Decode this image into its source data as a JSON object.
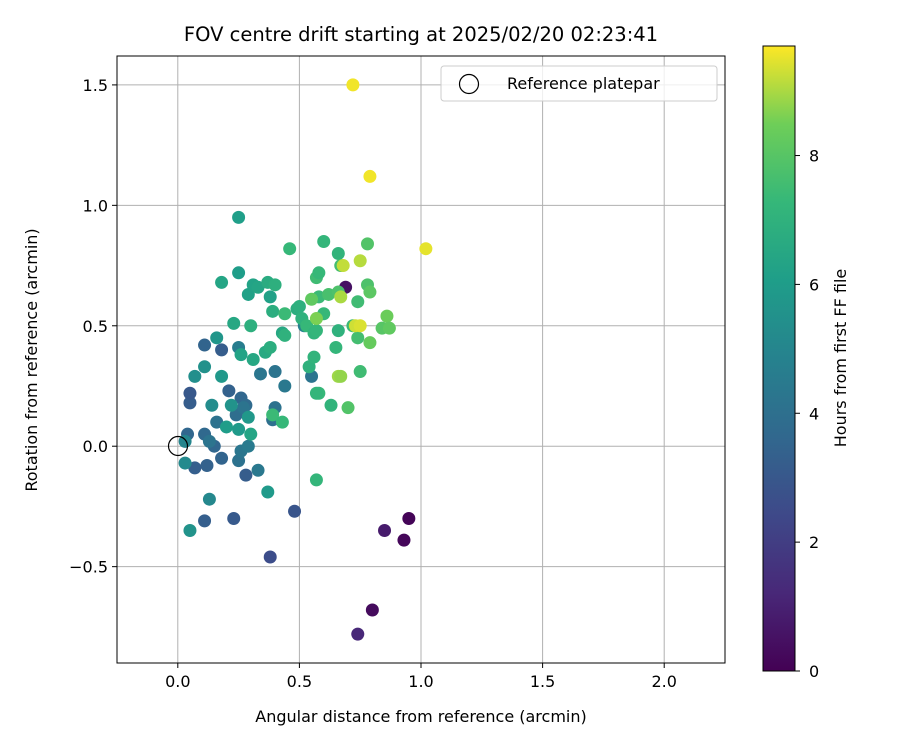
{
  "chart_data": {
    "type": "scatter",
    "title": "FOV centre drift starting at 2025/02/20 02:23:41",
    "xlabel": "Angular distance from reference (arcmin)",
    "ylabel": "Rotation from reference (arcmin)",
    "xlim": [
      -0.25,
      2.25
    ],
    "ylim": [
      -0.9,
      1.62
    ],
    "xticks": [
      0.0,
      0.5,
      1.0,
      1.5,
      2.0
    ],
    "xtick_labels": [
      "0.0",
      "0.5",
      "1.0",
      "1.5",
      "2.0"
    ],
    "yticks": [
      -0.5,
      0.0,
      0.5,
      1.0,
      1.5
    ],
    "ytick_labels": [
      "−0.5",
      "0.0",
      "0.5",
      "1.0",
      "1.5"
    ],
    "grid": true,
    "legend": {
      "placement": "top-right",
      "entries": [
        "Reference platepar"
      ]
    },
    "reference_point": {
      "x": 0.0,
      "y": 0.0,
      "label": "Reference platepar"
    },
    "colormap": "viridis",
    "colorbar": {
      "label": "Hours from first FF file",
      "range": [
        0,
        9.7
      ],
      "ticks": [
        0,
        2,
        4,
        6,
        8
      ],
      "tick_labels": [
        "0",
        "2",
        "4",
        "6",
        "8"
      ]
    },
    "points": [
      {
        "x": 0.95,
        "y": -0.3,
        "h": 0.1
      },
      {
        "x": 0.93,
        "y": -0.39,
        "h": 0.2
      },
      {
        "x": 0.8,
        "y": -0.68,
        "h": 0.3
      },
      {
        "x": 0.85,
        "y": -0.35,
        "h": 0.8
      },
      {
        "x": 0.74,
        "y": -0.78,
        "h": 1.2
      },
      {
        "x": 0.69,
        "y": 0.66,
        "h": 0.5
      },
      {
        "x": 0.38,
        "y": -0.46,
        "h": 2.6
      },
      {
        "x": 0.48,
        "y": -0.27,
        "h": 2.9
      },
      {
        "x": 0.23,
        "y": -0.3,
        "h": 3.1
      },
      {
        "x": 0.11,
        "y": -0.31,
        "h": 3.3
      },
      {
        "x": 0.28,
        "y": -0.12,
        "h": 3.2
      },
      {
        "x": 0.12,
        "y": -0.08,
        "h": 3.4
      },
      {
        "x": 0.07,
        "y": -0.09,
        "h": 3.3
      },
      {
        "x": 0.18,
        "y": -0.05,
        "h": 3.5
      },
      {
        "x": 0.15,
        "y": 0.0,
        "h": 3.6
      },
      {
        "x": 0.11,
        "y": 0.05,
        "h": 3.7
      },
      {
        "x": 0.04,
        "y": 0.05,
        "h": 3.6
      },
      {
        "x": 0.05,
        "y": 0.18,
        "h": 3.2
      },
      {
        "x": 0.05,
        "y": 0.22,
        "h": 3.0
      },
      {
        "x": 0.18,
        "y": 0.4,
        "h": 3.2
      },
      {
        "x": 0.11,
        "y": 0.42,
        "h": 3.5
      },
      {
        "x": 0.21,
        "y": 0.23,
        "h": 3.4
      },
      {
        "x": 0.26,
        "y": 0.2,
        "h": 3.6
      },
      {
        "x": 0.28,
        "y": 0.17,
        "h": 3.8
      },
      {
        "x": 0.24,
        "y": 0.13,
        "h": 3.9
      },
      {
        "x": 0.16,
        "y": 0.1,
        "h": 4.1
      },
      {
        "x": 0.13,
        "y": 0.02,
        "h": 4.2
      },
      {
        "x": 0.25,
        "y": -0.06,
        "h": 4.1
      },
      {
        "x": 0.26,
        "y": -0.02,
        "h": 4.3
      },
      {
        "x": 0.29,
        "y": 0.0,
        "h": 4.5
      },
      {
        "x": 0.33,
        "y": -0.1,
        "h": 4.4
      },
      {
        "x": 0.27,
        "y": 0.16,
        "h": 4.2
      },
      {
        "x": 0.34,
        "y": 0.3,
        "h": 4.3
      },
      {
        "x": 0.4,
        "y": 0.31,
        "h": 4.2
      },
      {
        "x": 0.4,
        "y": 0.16,
        "h": 4.1
      },
      {
        "x": 0.39,
        "y": 0.11,
        "h": 4.0
      },
      {
        "x": 0.25,
        "y": 0.41,
        "h": 4.6
      },
      {
        "x": 0.44,
        "y": 0.25,
        "h": 4.4
      },
      {
        "x": 0.55,
        "y": 0.29,
        "h": 4.2
      },
      {
        "x": 0.52,
        "y": 0.5,
        "h": 4.8
      },
      {
        "x": 0.03,
        "y": 0.02,
        "h": 5.0
      },
      {
        "x": 0.03,
        "y": -0.07,
        "h": 5.2
      },
      {
        "x": 0.05,
        "y": -0.35,
        "h": 5.6
      },
      {
        "x": 0.13,
        "y": -0.22,
        "h": 5.1
      },
      {
        "x": 0.14,
        "y": 0.17,
        "h": 5.3
      },
      {
        "x": 0.11,
        "y": 0.33,
        "h": 5.5
      },
      {
        "x": 0.07,
        "y": 0.29,
        "h": 5.4
      },
      {
        "x": 0.16,
        "y": 0.45,
        "h": 5.7
      },
      {
        "x": 0.18,
        "y": 0.29,
        "h": 5.8
      },
      {
        "x": 0.22,
        "y": 0.17,
        "h": 5.6
      },
      {
        "x": 0.2,
        "y": 0.08,
        "h": 6.0
      },
      {
        "x": 0.25,
        "y": 0.07,
        "h": 5.9
      },
      {
        "x": 0.29,
        "y": 0.12,
        "h": 5.8
      },
      {
        "x": 0.37,
        "y": -0.19,
        "h": 5.9
      },
      {
        "x": 0.3,
        "y": 0.05,
        "h": 6.4
      },
      {
        "x": 0.26,
        "y": 0.38,
        "h": 6.3
      },
      {
        "x": 0.31,
        "y": 0.36,
        "h": 6.5
      },
      {
        "x": 0.36,
        "y": 0.39,
        "h": 6.6
      },
      {
        "x": 0.38,
        "y": 0.41,
        "h": 6.8
      },
      {
        "x": 0.23,
        "y": 0.51,
        "h": 6.5
      },
      {
        "x": 0.29,
        "y": 0.63,
        "h": 6.2
      },
      {
        "x": 0.25,
        "y": 0.72,
        "h": 6.0
      },
      {
        "x": 0.25,
        "y": 0.95,
        "h": 6.1
      },
      {
        "x": 0.18,
        "y": 0.68,
        "h": 6.4
      },
      {
        "x": 0.31,
        "y": 0.67,
        "h": 6.3
      },
      {
        "x": 0.33,
        "y": 0.66,
        "h": 6.4
      },
      {
        "x": 0.38,
        "y": 0.62,
        "h": 6.2
      },
      {
        "x": 0.37,
        "y": 0.68,
        "h": 6.7
      },
      {
        "x": 0.4,
        "y": 0.67,
        "h": 6.9
      },
      {
        "x": 0.39,
        "y": 0.56,
        "h": 6.8
      },
      {
        "x": 0.3,
        "y": 0.5,
        "h": 6.9
      },
      {
        "x": 0.43,
        "y": 0.47,
        "h": 6.5
      },
      {
        "x": 0.44,
        "y": 0.46,
        "h": 7.0
      },
      {
        "x": 0.49,
        "y": 0.57,
        "h": 6.8
      },
      {
        "x": 0.5,
        "y": 0.58,
        "h": 6.9
      },
      {
        "x": 0.51,
        "y": 0.53,
        "h": 7.0
      },
      {
        "x": 0.46,
        "y": 0.82,
        "h": 7.3
      },
      {
        "x": 0.44,
        "y": 0.55,
        "h": 7.4
      },
      {
        "x": 0.53,
        "y": 0.5,
        "h": 7.3
      },
      {
        "x": 0.56,
        "y": 0.47,
        "h": 7.1
      },
      {
        "x": 0.57,
        "y": 0.48,
        "h": 7.2
      },
      {
        "x": 0.54,
        "y": 0.33,
        "h": 7.0
      },
      {
        "x": 0.56,
        "y": 0.37,
        "h": 7.1
      },
      {
        "x": 0.58,
        "y": 0.22,
        "h": 7.3
      },
      {
        "x": 0.57,
        "y": 0.22,
        "h": 7.2
      },
      {
        "x": 0.57,
        "y": -0.14,
        "h": 7.2
      },
      {
        "x": 0.39,
        "y": 0.13,
        "h": 7.4
      },
      {
        "x": 0.43,
        "y": 0.1,
        "h": 7.3
      },
      {
        "x": 0.63,
        "y": 0.17,
        "h": 7.1
      },
      {
        "x": 0.66,
        "y": 0.48,
        "h": 7.0
      },
      {
        "x": 0.65,
        "y": 0.41,
        "h": 7.2
      },
      {
        "x": 0.6,
        "y": 0.55,
        "h": 7.3
      },
      {
        "x": 0.58,
        "y": 0.62,
        "h": 7.4
      },
      {
        "x": 0.57,
        "y": 0.7,
        "h": 7.5
      },
      {
        "x": 0.58,
        "y": 0.72,
        "h": 7.3
      },
      {
        "x": 0.6,
        "y": 0.85,
        "h": 7.2
      },
      {
        "x": 0.66,
        "y": 0.8,
        "h": 7.1
      },
      {
        "x": 0.67,
        "y": 0.75,
        "h": 7.6
      },
      {
        "x": 0.62,
        "y": 0.63,
        "h": 7.7
      },
      {
        "x": 0.66,
        "y": 0.64,
        "h": 7.8
      },
      {
        "x": 0.7,
        "y": 0.16,
        "h": 7.9
      },
      {
        "x": 0.72,
        "y": 0.5,
        "h": 7.4
      },
      {
        "x": 0.74,
        "y": 0.6,
        "h": 7.5
      },
      {
        "x": 0.74,
        "y": 0.45,
        "h": 7.6
      },
      {
        "x": 0.75,
        "y": 0.31,
        "h": 7.5
      },
      {
        "x": 0.78,
        "y": 0.67,
        "h": 7.8
      },
      {
        "x": 0.78,
        "y": 0.84,
        "h": 7.9
      },
      {
        "x": 0.79,
        "y": 0.64,
        "h": 8.1
      },
      {
        "x": 0.79,
        "y": 0.43,
        "h": 8.3
      },
      {
        "x": 0.84,
        "y": 0.49,
        "h": 8.0
      },
      {
        "x": 0.86,
        "y": 0.54,
        "h": 8.4
      },
      {
        "x": 0.87,
        "y": 0.49,
        "h": 8.2
      },
      {
        "x": 0.57,
        "y": 0.53,
        "h": 8.6
      },
      {
        "x": 0.55,
        "y": 0.61,
        "h": 8.2
      },
      {
        "x": 0.66,
        "y": 0.29,
        "h": 8.9
      },
      {
        "x": 0.67,
        "y": 0.29,
        "h": 8.8
      },
      {
        "x": 0.67,
        "y": 0.62,
        "h": 9.0
      },
      {
        "x": 0.68,
        "y": 0.75,
        "h": 9.2
      },
      {
        "x": 0.75,
        "y": 0.77,
        "h": 9.1
      },
      {
        "x": 0.73,
        "y": 0.5,
        "h": 9.3
      },
      {
        "x": 0.75,
        "y": 0.5,
        "h": 9.4
      },
      {
        "x": 0.72,
        "y": 1.5,
        "h": 9.6
      },
      {
        "x": 0.79,
        "y": 1.12,
        "h": 9.6
      },
      {
        "x": 1.02,
        "y": 0.82,
        "h": 9.5
      }
    ]
  }
}
